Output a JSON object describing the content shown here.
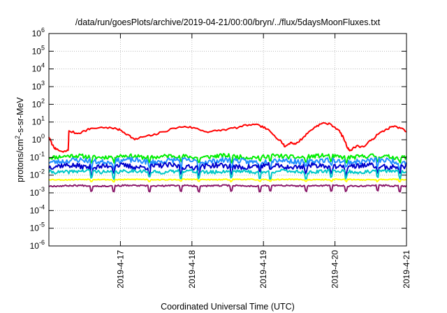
{
  "chart_data": {
    "type": "line",
    "title": "/data/run/goesPlots/archive/2019-04-21/00:00/bryn/../flux/5daysMoonFluxes.txt",
    "xlabel": "Coordinated Universal Time (UTC)",
    "ylabel_parts": {
      "base": "protons/cm",
      "sup": "2",
      "rest": "-s-sr-MeV"
    },
    "log_y": true,
    "ylim": [
      -6,
      6
    ],
    "xlim": [
      0,
      5
    ],
    "grid": true,
    "legend": "none",
    "y_ticks": [
      {
        "exp": -6,
        "base": "10",
        "sup": "-6"
      },
      {
        "exp": -5,
        "base": "10",
        "sup": "-5"
      },
      {
        "exp": -4,
        "base": "10",
        "sup": "-4"
      },
      {
        "exp": -3,
        "base": "10",
        "sup": "-3"
      },
      {
        "exp": -2,
        "base": "10",
        "sup": "-2"
      },
      {
        "exp": -1,
        "base": "10",
        "sup": "-1"
      },
      {
        "exp": 0,
        "base": "10",
        "sup": "0"
      },
      {
        "exp": 1,
        "base": "10",
        "sup": "1"
      },
      {
        "exp": 2,
        "base": "10",
        "sup": "2"
      },
      {
        "exp": 3,
        "base": "10",
        "sup": "3"
      },
      {
        "exp": 4,
        "base": "10",
        "sup": "4"
      },
      {
        "exp": 5,
        "base": "10",
        "sup": "5"
      },
      {
        "exp": 6,
        "base": "10",
        "sup": "6"
      }
    ],
    "x_ticks": [
      {
        "day": 1,
        "label": "2019-4-17"
      },
      {
        "day": 2,
        "label": "2019-4-18"
      },
      {
        "day": 3,
        "label": "2019-4-19"
      },
      {
        "day": 4,
        "label": "2019-4-20"
      },
      {
        "day": 5,
        "label": "2019-4-21"
      }
    ],
    "series": [
      {
        "color": "#ff0000",
        "points": [
          [
            0,
            0.15
          ],
          [
            0.05,
            -0.3
          ],
          [
            0.1,
            -0.55
          ],
          [
            0.2,
            -0.7
          ],
          [
            0.27,
            -0.6
          ],
          [
            0.28,
            0.5
          ],
          [
            0.4,
            0.35
          ],
          [
            0.5,
            0.5
          ],
          [
            0.6,
            0.65
          ],
          [
            0.8,
            0.7
          ],
          [
            0.95,
            0.6
          ],
          [
            1.0,
            0.55
          ],
          [
            1.1,
            0.3
          ],
          [
            1.2,
            0.0
          ],
          [
            1.3,
            0.15
          ],
          [
            1.45,
            0.25
          ],
          [
            1.6,
            0.45
          ],
          [
            1.75,
            0.65
          ],
          [
            1.9,
            0.75
          ],
          [
            2.05,
            0.65
          ],
          [
            2.2,
            0.45
          ],
          [
            2.35,
            0.5
          ],
          [
            2.5,
            0.6
          ],
          [
            2.65,
            0.7
          ],
          [
            2.8,
            0.85
          ],
          [
            2.95,
            0.8
          ],
          [
            3.05,
            0.6
          ],
          [
            3.15,
            0.25
          ],
          [
            3.25,
            -0.1
          ],
          [
            3.3,
            -0.4
          ],
          [
            3.38,
            -0.15
          ],
          [
            3.45,
            -0.25
          ],
          [
            3.55,
            0.1
          ],
          [
            3.65,
            0.5
          ],
          [
            3.75,
            0.8
          ],
          [
            3.85,
            0.95
          ],
          [
            3.95,
            0.85
          ],
          [
            4.05,
            0.55
          ],
          [
            4.12,
            0.1
          ],
          [
            4.18,
            -0.5
          ],
          [
            4.22,
            -0.6
          ],
          [
            4.3,
            -0.35
          ],
          [
            4.4,
            -0.4
          ],
          [
            4.5,
            -0.05
          ],
          [
            4.6,
            0.3
          ],
          [
            4.7,
            0.55
          ],
          [
            4.8,
            0.75
          ],
          [
            4.9,
            0.7
          ],
          [
            5.0,
            0.45
          ]
        ]
      },
      {
        "color": "#00ee00",
        "base": -0.95,
        "amp": 0.12,
        "dip": 0.3,
        "seed": 11
      },
      {
        "color": "#1f8fff",
        "base": -1.2,
        "amp": 0.15,
        "dip": 0.35,
        "seed": 23
      },
      {
        "color": "#0000cc",
        "base": -1.5,
        "amp": 0.15,
        "dip": 0.35,
        "seed": 37
      },
      {
        "color": "#00c8c8",
        "base": -1.8,
        "amp": 0.1,
        "dip": 0.35,
        "seed": 41
      },
      {
        "color": "#ffff00",
        "base": -2.25,
        "amp": 0.03,
        "dip": 0.1,
        "seed": 53
      },
      {
        "color": "#8b1a6b",
        "base": -2.6,
        "amp": 0.04,
        "dip": 0.3,
        "seed": 67
      }
    ]
  }
}
